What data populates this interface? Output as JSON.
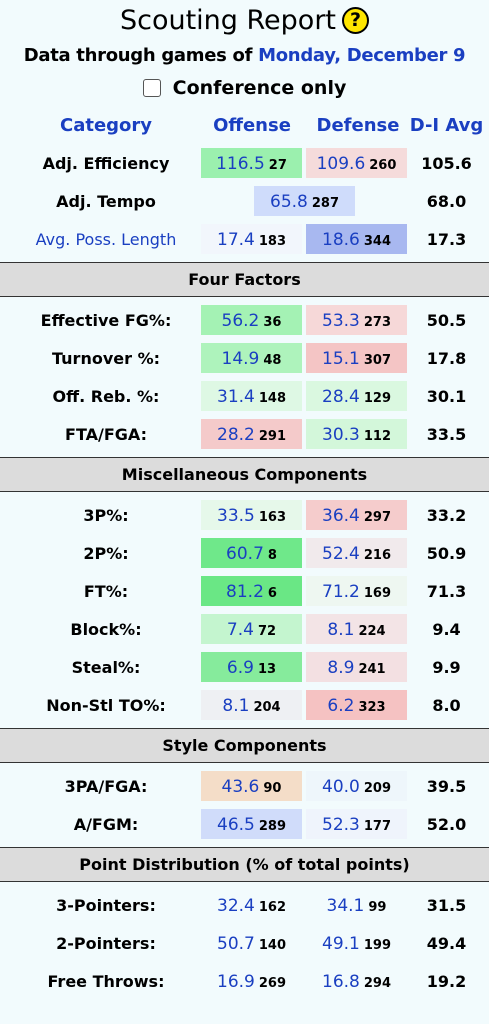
{
  "header": {
    "title": "Scouting Report",
    "help_glyph": "?",
    "subtitle_prefix": "Data through games of",
    "subtitle_date": "Monday, December 9",
    "conference_label": "Conference only"
  },
  "columns": {
    "category": "Category",
    "offense": "Offense",
    "defense": "Defense",
    "avg": "D-I Avg"
  },
  "top_rows": [
    {
      "label": "Adj. Efficiency",
      "off": {
        "value": "116.5",
        "rank": "27",
        "color": "#9bf0ae"
      },
      "def": {
        "value": "109.6",
        "rank": "260",
        "color": "#f5dbdb"
      },
      "avg": "105.6"
    },
    {
      "label": "Adj. Tempo",
      "combined": {
        "value": "65.8",
        "rank": "287",
        "color": "#cfdcfb"
      },
      "avg": "68.0"
    },
    {
      "label": "Avg. Poss. Length",
      "off": {
        "value": "17.4",
        "rank": "183",
        "color": "#f2f6fc"
      },
      "def": {
        "value": "18.6",
        "rank": "344",
        "color": "#a8b8f0"
      },
      "avg": "17.3"
    }
  ],
  "sections": [
    {
      "title": "Four Factors",
      "rows": [
        {
          "label": "Effective FG%:",
          "off": {
            "value": "56.2",
            "rank": "36",
            "color": "#a4f2b4"
          },
          "def": {
            "value": "53.3",
            "rank": "273",
            "color": "#f6d8d8"
          },
          "avg": "50.5"
        },
        {
          "label": "Turnover %:",
          "off": {
            "value": "14.9",
            "rank": "48",
            "color": "#aef3bc"
          },
          "def": {
            "value": "15.1",
            "rank": "307",
            "color": "#f4c5c5"
          },
          "avg": "17.8"
        },
        {
          "label": "Off. Reb. %:",
          "off": {
            "value": "31.4",
            "rank": "148",
            "color": "#def8e4"
          },
          "def": {
            "value": "28.4",
            "rank": "129",
            "color": "#daf8e0"
          },
          "avg": "30.1"
        },
        {
          "label": "FTA/FGA:",
          "off": {
            "value": "28.2",
            "rank": "291",
            "color": "#f4caca"
          },
          "def": {
            "value": "30.3",
            "rank": "112",
            "color": "#d3f7da"
          },
          "avg": "33.5"
        }
      ]
    },
    {
      "title": "Miscellaneous Components",
      "rows": [
        {
          "label": "3P%:",
          "off": {
            "value": "33.5",
            "rank": "163",
            "color": "#e6f8ea"
          },
          "def": {
            "value": "36.4",
            "rank": "297",
            "color": "#f5cccc"
          },
          "avg": "33.2"
        },
        {
          "label": "2P%:",
          "off": {
            "value": "60.7",
            "rank": "8",
            "color": "#6fe88a"
          },
          "def": {
            "value": "52.4",
            "rank": "216",
            "color": "#f1eaec"
          },
          "avg": "50.9"
        },
        {
          "label": "FT%:",
          "off": {
            "value": "81.2",
            "rank": "6",
            "color": "#6ae785"
          },
          "def": {
            "value": "71.2",
            "rank": "169",
            "color": "#eef7f1"
          },
          "avg": "71.3"
        },
        {
          "label": "Block%:",
          "off": {
            "value": "7.4",
            "rank": "72",
            "color": "#c4f5cf"
          },
          "def": {
            "value": "8.1",
            "rank": "224",
            "color": "#f3e4e6"
          },
          "avg": "9.4"
        },
        {
          "label": "Steal%:",
          "off": {
            "value": "6.9",
            "rank": "13",
            "color": "#86eb9c"
          },
          "def": {
            "value": "8.9",
            "rank": "241",
            "color": "#f3e0e2"
          },
          "avg": "9.9"
        },
        {
          "label": "Non-Stl TO%:",
          "off": {
            "value": "8.1",
            "rank": "204",
            "color": "#eef0f3"
          },
          "def": {
            "value": "6.2",
            "rank": "323",
            "color": "#f5c2c2"
          },
          "avg": "8.0"
        }
      ]
    },
    {
      "title": "Style Components",
      "rows": [
        {
          "label": "3PA/FGA:",
          "off": {
            "value": "43.6",
            "rank": "90",
            "color": "#f4ddc8"
          },
          "def": {
            "value": "40.0",
            "rank": "209",
            "color": "#eef6fb"
          },
          "avg": "39.5"
        },
        {
          "label": "A/FGM:",
          "off": {
            "value": "46.5",
            "rank": "289",
            "color": "#d0dcfa"
          },
          "def": {
            "value": "52.3",
            "rank": "177",
            "color": "#eff4fc"
          },
          "avg": "52.0"
        }
      ]
    },
    {
      "title": "Point Distribution (% of total points)",
      "rows": [
        {
          "label": "3-Pointers:",
          "off": {
            "value": "32.4",
            "rank": "162",
            "color": "transparent"
          },
          "def": {
            "value": "34.1",
            "rank": "99",
            "color": "transparent"
          },
          "avg": "31.5"
        },
        {
          "label": "2-Pointers:",
          "off": {
            "value": "50.7",
            "rank": "140",
            "color": "transparent"
          },
          "def": {
            "value": "49.1",
            "rank": "199",
            "color": "transparent"
          },
          "avg": "49.4"
        },
        {
          "label": "Free Throws:",
          "off": {
            "value": "16.9",
            "rank": "269",
            "color": "transparent"
          },
          "def": {
            "value": "16.8",
            "rank": "294",
            "color": "transparent"
          },
          "avg": "19.2"
        }
      ]
    }
  ]
}
